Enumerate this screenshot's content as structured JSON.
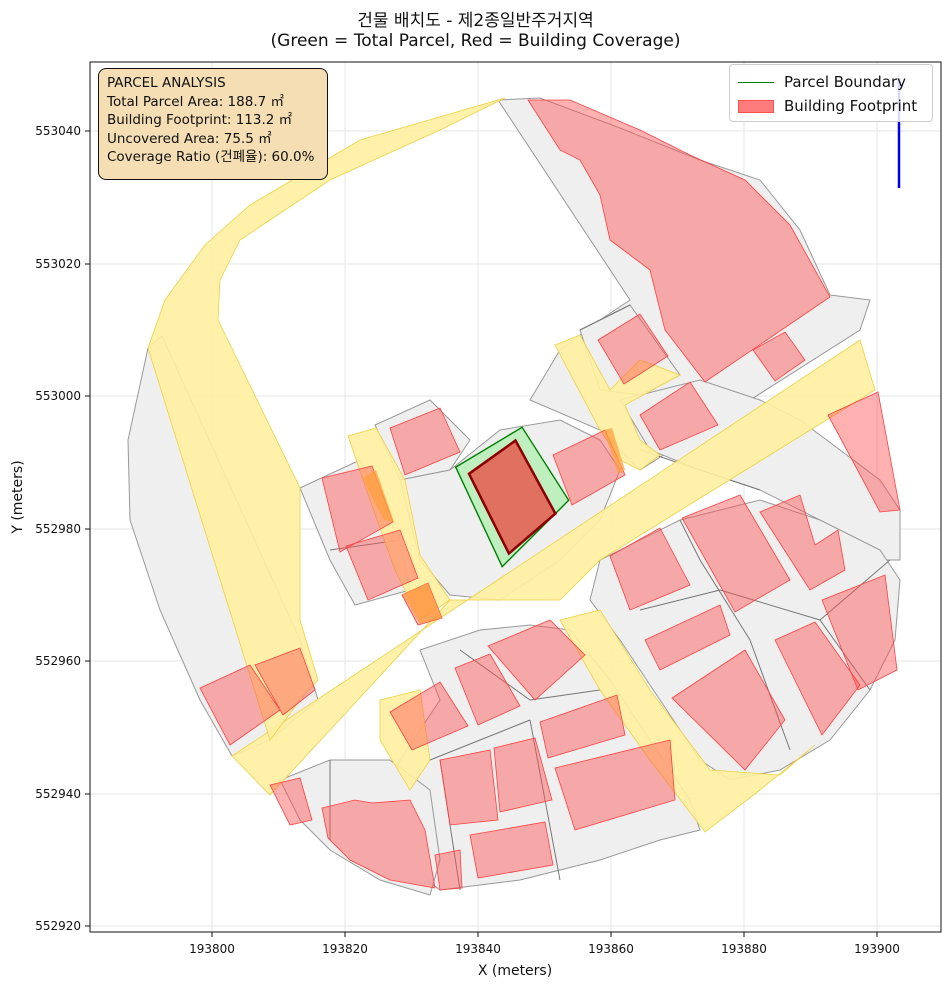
{
  "title": "건물 배치도 - 제2종일반주거지역",
  "subtitle": "(Green = Total Parcel, Red = Building Coverage)",
  "info": {
    "heading": "PARCEL ANALYSIS",
    "parcel_area": "Total Parcel Area: 188.7 ㎡",
    "footprint": "Building Footprint: 113.2 ㎡",
    "uncovered": "Uncovered Area: 75.5 ㎡",
    "coverage": "Coverage Ratio (건폐율): 60.0%"
  },
  "legend": {
    "parcel": "Parcel Boundary",
    "building": "Building Footprint"
  },
  "colors": {
    "parcel_edge": "#008000",
    "parcel_fill": "#90ee90",
    "building": "#ff5050",
    "road": "#ffe680",
    "context_parcel": "#efefef"
  },
  "chart_data": {
    "type": "map",
    "xlabel": "X (meters)",
    "ylabel": "Y (meters)",
    "x_ticks": [
      "193800",
      "193820",
      "193840",
      "193860",
      "193880",
      "193900"
    ],
    "y_ticks": [
      "553040",
      "553020",
      "553000",
      "552980",
      "552960",
      "552940",
      "552920"
    ],
    "x_range": [
      193782,
      193910
    ],
    "y_range": [
      552919,
      553050
    ],
    "grid": true,
    "legend_position": "top-right",
    "north_arrow": "top-right",
    "target_parcel": [
      [
        193837,
        552989
      ],
      [
        193847,
        552995
      ],
      [
        193854,
        552984
      ],
      [
        193844,
        552974
      ]
    ],
    "target_building": [
      [
        193839,
        552988
      ],
      [
        193846,
        552993
      ],
      [
        193852,
        552982
      ],
      [
        193845,
        552976
      ]
    ]
  }
}
